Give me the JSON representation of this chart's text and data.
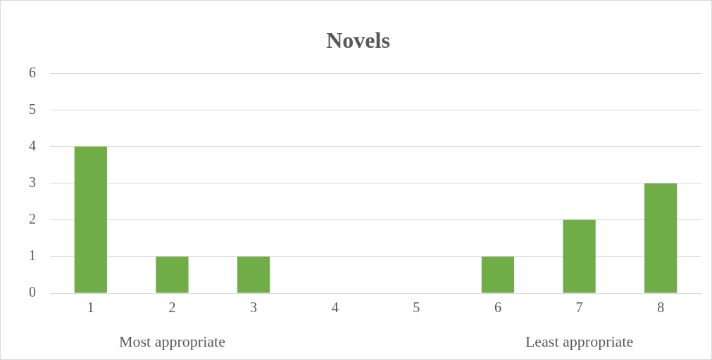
{
  "chart_data": {
    "type": "bar",
    "title": "Novels",
    "categories": [
      "1",
      "2",
      "3",
      "4",
      "5",
      "6",
      "7",
      "8"
    ],
    "values": [
      4,
      1,
      1,
      0,
      0,
      1,
      2,
      3
    ],
    "color": "#70ad47",
    "ylim": [
      0,
      6
    ],
    "yticks": [
      0,
      1,
      2,
      3,
      4,
      5,
      6
    ],
    "grid": "y",
    "legend": false,
    "annotations": [
      "Most appropriate",
      "Least appropriate"
    ]
  }
}
